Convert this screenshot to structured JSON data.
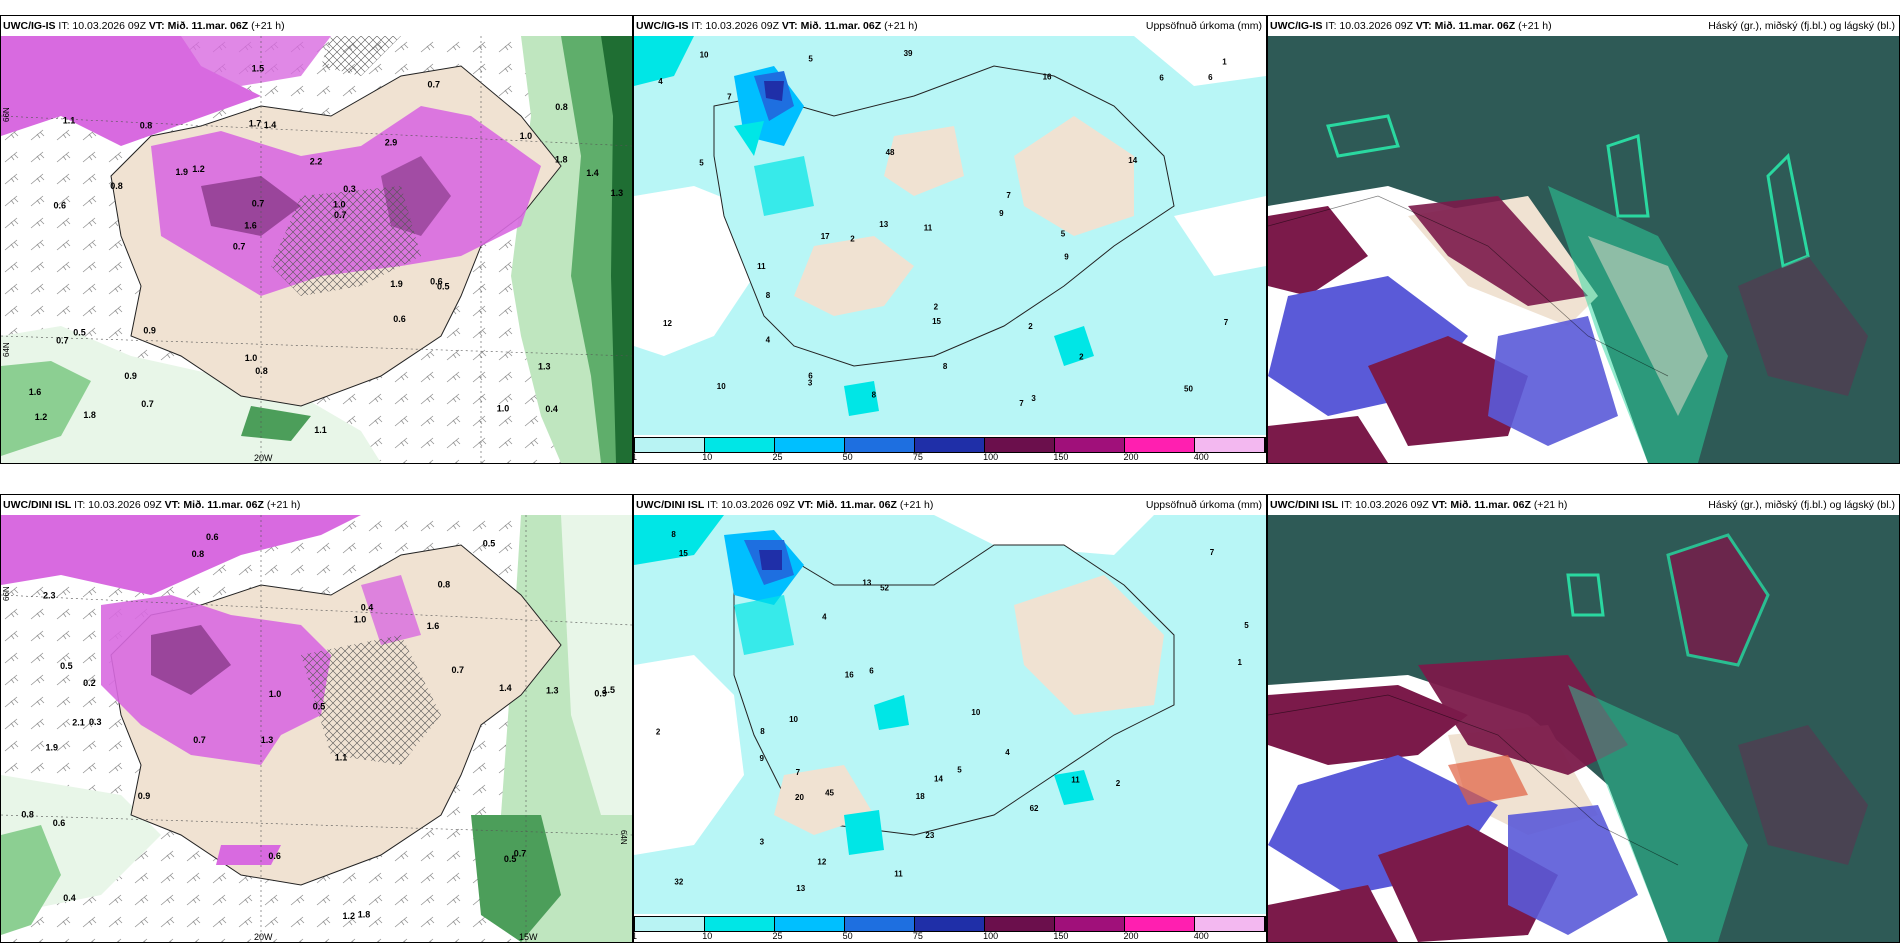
{
  "rows": [
    {
      "model": "UWC/IG-IS",
      "it": "IT: 10.03.2026 09Z",
      "vt": "VT: Mið. 11.mar. 06Z",
      "lead": "(+21 h)",
      "precip_title": "Uppsöfnuð úrkoma (mm)",
      "cloud_title": "Háský (gr.), miðský (fj.bl.) og lágský (bl.)",
      "lon_labels": [
        "20W"
      ],
      "lat_labels": [
        "66N",
        "64N"
      ],
      "snow_values": [
        "0.4",
        "0.6",
        "0.8",
        "0.7",
        "2.9",
        "1.8",
        "1.7",
        "2.2",
        "0.5",
        "1.2",
        "1.6",
        "0.9",
        "1.4",
        "0.3",
        "0.5",
        "1.1",
        "1.5",
        "1.3",
        "1.9",
        "1.8",
        "1.6",
        "1.0",
        "0.7",
        "0.8",
        "0.7",
        "0.9",
        "1.0",
        "1.3",
        "0.6",
        "1.1",
        "1.9",
        "0.8",
        "0.6",
        "0.7",
        "1.4",
        "1.0",
        "1.2",
        "0.8",
        "0.7",
        "0.7",
        "1.0"
      ],
      "precip_values": [
        "8",
        "7",
        "6",
        "2",
        "5",
        "7",
        "17",
        "50",
        "39",
        "48",
        "6",
        "8",
        "13",
        "15",
        "16",
        "9",
        "5",
        "3",
        "2",
        "4",
        "2",
        "1",
        "7",
        "10",
        "14",
        "11",
        "12",
        "8",
        "10",
        "9",
        "11",
        "3",
        "2",
        "6",
        "4",
        "5",
        "7"
      ]
    },
    {
      "model": "UWC/DINI ISL",
      "it": "IT: 10.03.2026 09Z",
      "vt": "VT: Mið. 11.mar. 06Z",
      "lead": "(+21 h)",
      "precip_title": "Uppsöfnuð úrkoma (mm)",
      "cloud_title": "Háský (gr.), miðský (fj.bl.) og lágský (bl.)",
      "lon_labels": [
        "20W",
        "15W"
      ],
      "lat_labels": [
        "66N",
        "64N"
      ],
      "snow_values": [
        "0.6",
        "0.8",
        "0.9",
        "1.3",
        "1.1",
        "0.3",
        "2.3",
        "1.6",
        "1.9",
        "1.0",
        "0.5",
        "0.4",
        "0.8",
        "0.7",
        "1.2",
        "1.8",
        "0.6",
        "0.5",
        "0.7",
        "0.9",
        "0.2",
        "2.1",
        "1.5",
        "1.3",
        "0.8",
        "0.5",
        "1.0",
        "1.4",
        "0.7",
        "0.6",
        "0.5",
        "0.4"
      ],
      "precip_values": [
        "15",
        "8",
        "2",
        "7",
        "5",
        "62",
        "52",
        "45",
        "32",
        "11",
        "20",
        "10",
        "13",
        "9",
        "14",
        "16",
        "18",
        "3",
        "4",
        "6",
        "1",
        "23",
        "12",
        "10",
        "8",
        "5",
        "7",
        "2",
        "11",
        "13",
        "4"
      ]
    }
  ],
  "legend": {
    "labels": [
      "1",
      "10",
      "25",
      "50",
      "75",
      "100",
      "150",
      "200",
      "400"
    ],
    "colors": [
      "#b8f3f3",
      "#00e6e6",
      "#00bfff",
      "#1e6fe0",
      "#1f2fa8",
      "#6b0f4c",
      "#a0107a",
      "#ff1fb0",
      "#f3b8f0"
    ]
  },
  "colors": {
    "land": "#f0e2d2",
    "snow_magenta": "#d86ae0",
    "snow_dark": "#8a3a8a",
    "green_edge": "#2f8a3f",
    "precip_cyan": "#b8f6f6",
    "cloud_base": "#2e5a56",
    "cloud_red": "#7b1a4a",
    "cloud_blue": "#5a5ad8",
    "cloud_green": "#2ad8a0"
  }
}
